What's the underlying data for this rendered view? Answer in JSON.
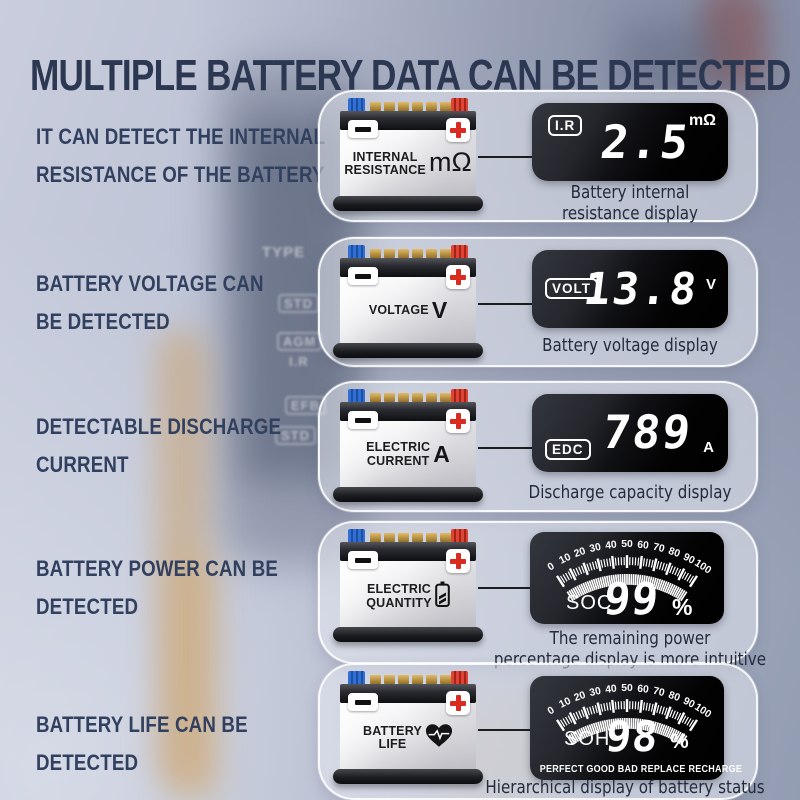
{
  "title": "MULTIPLE BATTERY DATA CAN BE DETECTED",
  "background": {
    "faint_labels": [
      "TYPE",
      "STD",
      "AGM",
      "I.R",
      "EFB",
      "STD"
    ]
  },
  "gauge_tick_labels": [
    "0",
    "10",
    "20",
    "30",
    "40",
    "50",
    "60",
    "70",
    "80",
    "90",
    "100"
  ],
  "rows": [
    {
      "description": [
        "IT CAN DETECT THE INTERNAL",
        "RESISTANCE OF THE BATTERY"
      ],
      "battery": {
        "label": [
          "INTERNAL",
          "RESISTANCE"
        ],
        "unit": "mΩ"
      },
      "display": {
        "badge": "I.R",
        "value": "2.5",
        "unit": "mΩ"
      },
      "caption": [
        "Battery internal",
        "resistance display"
      ]
    },
    {
      "description": [
        "BATTERY VOLTAGE CAN",
        "BE DETECTED"
      ],
      "battery": {
        "label": [
          "VOLTAGE"
        ],
        "unit": "V"
      },
      "display": {
        "badge": "VOLT",
        "value": "13.8",
        "unit": "V"
      },
      "caption": [
        "Battery voltage display"
      ]
    },
    {
      "description": [
        "DETECTABLE DISCHARGE",
        "CURRENT"
      ],
      "battery": {
        "label": [
          "ELECTRIC",
          "CURRENT"
        ],
        "unit": "A"
      },
      "display": {
        "badge": "EDC",
        "value": "789",
        "unit": "A"
      },
      "caption": [
        "Discharge capacity display"
      ]
    },
    {
      "description": [
        "BATTERY POWER CAN BE",
        "DETECTED"
      ],
      "battery": {
        "label": [
          "ELECTRIC",
          "QUANTITY"
        ],
        "icon": "battery-icon"
      },
      "display": {
        "type": "gauge",
        "label": "SOC",
        "value": "99",
        "unit": "%"
      },
      "caption": [
        "The remaining power",
        "percentage display is more intuitive"
      ]
    },
    {
      "description": [
        "BATTERY LIFE CAN BE",
        "DETECTED"
      ],
      "battery": {
        "label": [
          "BATTERY",
          "LIFE"
        ],
        "icon": "heart-icon"
      },
      "display": {
        "type": "gauge",
        "label": "SOH",
        "value": "98",
        "unit": "%",
        "statuses": "PERFECT GOOD BAD REPLACE RECHARGE"
      },
      "caption": [
        "Hierarchical display of battery status"
      ]
    }
  ]
}
